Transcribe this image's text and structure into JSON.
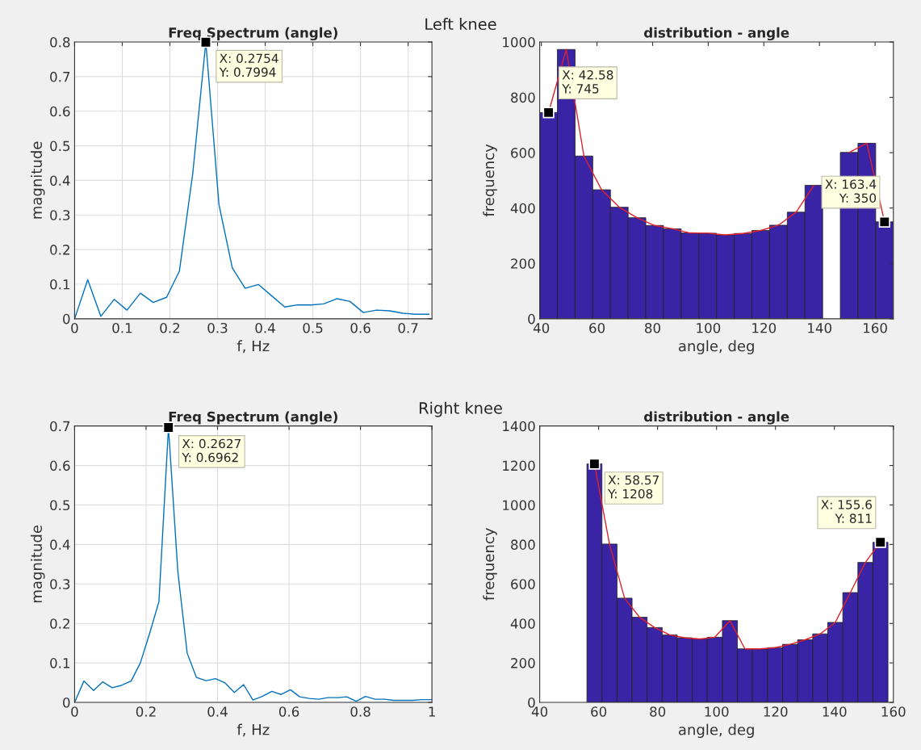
{
  "chart_data": [
    {
      "type": "line",
      "title": "Freq Spectrum (angle)",
      "xlabel": "f, Hz",
      "ylabel": "magnitude",
      "series": [
        {
          "color": "#0072bd",
          "x": [
            0,
            0.0275,
            0.055,
            0.083,
            0.11,
            0.138,
            0.165,
            0.193,
            0.22,
            0.248,
            0.2754,
            0.303,
            0.331,
            0.358,
            0.386,
            0.413,
            0.441,
            0.468,
            0.496,
            0.523,
            0.551,
            0.578,
            0.606,
            0.634,
            0.661,
            0.689,
            0.716,
            0.744
          ],
          "values": [
            0.0,
            0.113,
            0.007,
            0.056,
            0.025,
            0.074,
            0.047,
            0.062,
            0.138,
            0.42,
            0.7994,
            0.33,
            0.147,
            0.088,
            0.099,
            0.067,
            0.034,
            0.04,
            0.04,
            0.043,
            0.058,
            0.05,
            0.018,
            0.025,
            0.023,
            0.016,
            0.013,
            0.013
          ]
        }
      ],
      "xlim": [
        0,
        0.75
      ],
      "xticks": [
        0,
        0.1,
        0.2,
        0.3,
        0.4,
        0.5,
        0.6,
        0.7
      ],
      "ylim": [
        0,
        0.8
      ],
      "yticks": [
        0,
        0.1,
        0.2,
        0.3,
        0.4,
        0.5,
        0.6,
        0.7,
        0.8
      ],
      "grid": true,
      "annotations": [
        "Left knee",
        {
          "text": "X: 0.2754\nY: 0.7994",
          "x": 0.2754,
          "y": 0.7994
        }
      ]
    },
    {
      "type": "histogram",
      "title": "distribution - angle",
      "xlabel": "angle, deg",
      "ylabel": "frequency",
      "color": "#3a24a6",
      "bins": [
        39.4,
        45.76,
        52.12,
        58.48,
        64.84,
        71.2,
        77.55,
        83.91,
        90.27,
        96.63,
        102.99,
        109.35,
        115.71,
        122.07,
        128.43,
        134.79,
        141.15,
        147.51,
        153.86,
        160.22,
        166.58
      ],
      "values": [
        745,
        973,
        588,
        466,
        403,
        365,
        337,
        325,
        310,
        309,
        303,
        308,
        319,
        338,
        385,
        482,
        null,
        601,
        634,
        350
      ],
      "series": [
        {
          "type": "line",
          "color": "#e0202a",
          "x": [
            42.58,
            48.94,
            55.3,
            61.66,
            68.02,
            74.38,
            80.73,
            87.09,
            93.45,
            99.81,
            106.17,
            112.53,
            118.89,
            125.25,
            131.61,
            137.97,
            144.33,
            150.69,
            157.04,
            163.4
          ],
          "values": [
            745,
            973,
            588,
            466,
            403,
            365,
            337,
            325,
            310,
            309,
            303,
            308,
            319,
            338,
            385,
            482,
            null,
            601,
            634,
            350
          ]
        }
      ],
      "xlim": [
        39.4,
        166.58
      ],
      "xticks": [
        40,
        60,
        80,
        100,
        120,
        140,
        160
      ],
      "ylim": [
        0,
        1000
      ],
      "yticks": [
        0,
        200,
        400,
        600,
        800,
        1000
      ],
      "grid": false,
      "annotations": [
        {
          "text": "X: 42.58\nY: 745",
          "x": 42.58,
          "y": 745
        },
        {
          "text": "X: 163.4\nY: 350",
          "x": 163.4,
          "y": 350
        }
      ]
    },
    {
      "type": "line",
      "title": "Freq Spectrum (angle)",
      "xlabel": "f, Hz",
      "ylabel": "magnitude",
      "series": [
        {
          "color": "#0072bd",
          "x": [
            0,
            0.026,
            0.053,
            0.079,
            0.105,
            0.131,
            0.158,
            0.184,
            0.21,
            0.236,
            0.2627,
            0.289,
            0.315,
            0.341,
            0.368,
            0.394,
            0.42,
            0.447,
            0.473,
            0.499,
            0.525,
            0.552,
            0.578,
            0.604,
            0.63,
            0.657,
            0.683,
            0.709,
            0.736,
            0.762,
            0.788,
            0.814,
            0.841,
            0.867,
            0.893,
            0.92,
            0.946,
            0.972,
            0.999
          ],
          "values": [
            0.0,
            0.054,
            0.03,
            0.052,
            0.037,
            0.043,
            0.054,
            0.1,
            0.175,
            0.255,
            0.6962,
            0.33,
            0.125,
            0.063,
            0.055,
            0.06,
            0.05,
            0.025,
            0.045,
            0.006,
            0.015,
            0.028,
            0.02,
            0.032,
            0.014,
            0.01,
            0.008,
            0.012,
            0.012,
            0.014,
            0.003,
            0.015,
            0.008,
            0.008,
            0.005,
            0.005,
            0.005,
            0.007,
            0.007
          ]
        }
      ],
      "xlim": [
        0,
        1
      ],
      "xticks": [
        0,
        0.2,
        0.4,
        0.6,
        0.8,
        1
      ],
      "ylim": [
        0,
        0.7
      ],
      "yticks": [
        0,
        0.1,
        0.2,
        0.3,
        0.4,
        0.5,
        0.6,
        0.7
      ],
      "grid": true,
      "annotations": [
        "Right knee",
        {
          "text": "X: 0.2627\nY: 0.6962",
          "x": 0.2627,
          "y": 0.6962
        }
      ]
    },
    {
      "type": "histogram",
      "title": "distribution - angle",
      "xlabel": "angle, deg",
      "ylabel": "frequency",
      "color": "#3a24a6",
      "bins": [
        56.02,
        61.12,
        66.23,
        71.34,
        76.45,
        81.56,
        86.66,
        91.77,
        96.88,
        101.99,
        107.09,
        112.2,
        117.31,
        122.42,
        127.52,
        132.63,
        137.74,
        142.85,
        147.96,
        153.06,
        158.17
      ],
      "values": [
        1208,
        802,
        528,
        431,
        379,
        342,
        327,
        321,
        330,
        414,
        271,
        271,
        277,
        294,
        317,
        347,
        405,
        556,
        709,
        811
      ],
      "series": [
        {
          "type": "line",
          "color": "#e0202a",
          "x": [
            58.57,
            63.68,
            68.79,
            73.89,
            79.0,
            84.11,
            89.22,
            94.32,
            99.43,
            104.54,
            109.65,
            114.76,
            119.86,
            124.97,
            130.08,
            135.19,
            140.29,
            145.4,
            150.51,
            155.6
          ],
          "values": [
            1208,
            802,
            528,
            431,
            379,
            342,
            327,
            321,
            330,
            414,
            271,
            271,
            277,
            294,
            317,
            347,
            405,
            556,
            709,
            811
          ]
        }
      ],
      "xlim": [
        40,
        160
      ],
      "xticks": [
        40,
        60,
        80,
        100,
        120,
        140,
        160
      ],
      "ylim": [
        0,
        1400
      ],
      "yticks": [
        0,
        200,
        400,
        600,
        800,
        1000,
        1200,
        1400
      ],
      "grid": false,
      "annotations": [
        {
          "text": "X: 58.57\nY: 1208",
          "x": 58.57,
          "y": 1208
        },
        {
          "text": "X: 155.6\nY: 811",
          "x": 155.6,
          "y": 811
        }
      ]
    }
  ]
}
